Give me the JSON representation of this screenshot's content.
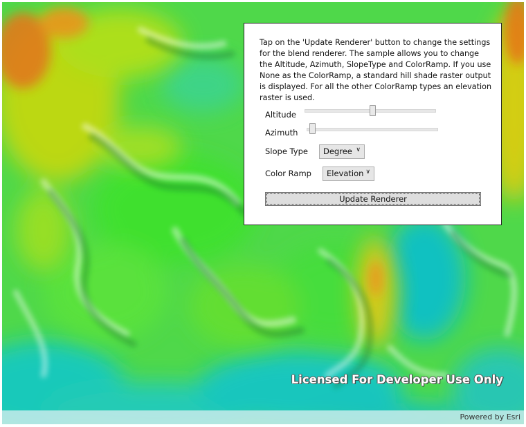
{
  "map": {
    "watermark": "Licensed For Developer Use Only",
    "attribution": "Powered by Esri",
    "colors": {
      "low": "#00c4c8",
      "mid": "#1fe01a",
      "high": "#f7c600",
      "peak": "#e0621a"
    }
  },
  "panel": {
    "instructions": "Tap on the 'Update Renderer' button to change the settings for the blend renderer. The sample allows you to change the Altitude, Azimuth, SlopeType and ColorRamp. If you use None as the ColorRamp, a standard hill shade raster output is displayed. For all the other ColorRamp types an elevation raster is used.",
    "altitude": {
      "label": "Altitude",
      "value_fraction": 0.5
    },
    "azimuth": {
      "label": "Azimuth",
      "value_fraction": 0.0
    },
    "slope_type": {
      "label": "Slope Type",
      "selected": "Degree"
    },
    "color_ramp": {
      "label": "Color Ramp",
      "selected": "Elevation"
    },
    "update_button": "Update Renderer"
  }
}
